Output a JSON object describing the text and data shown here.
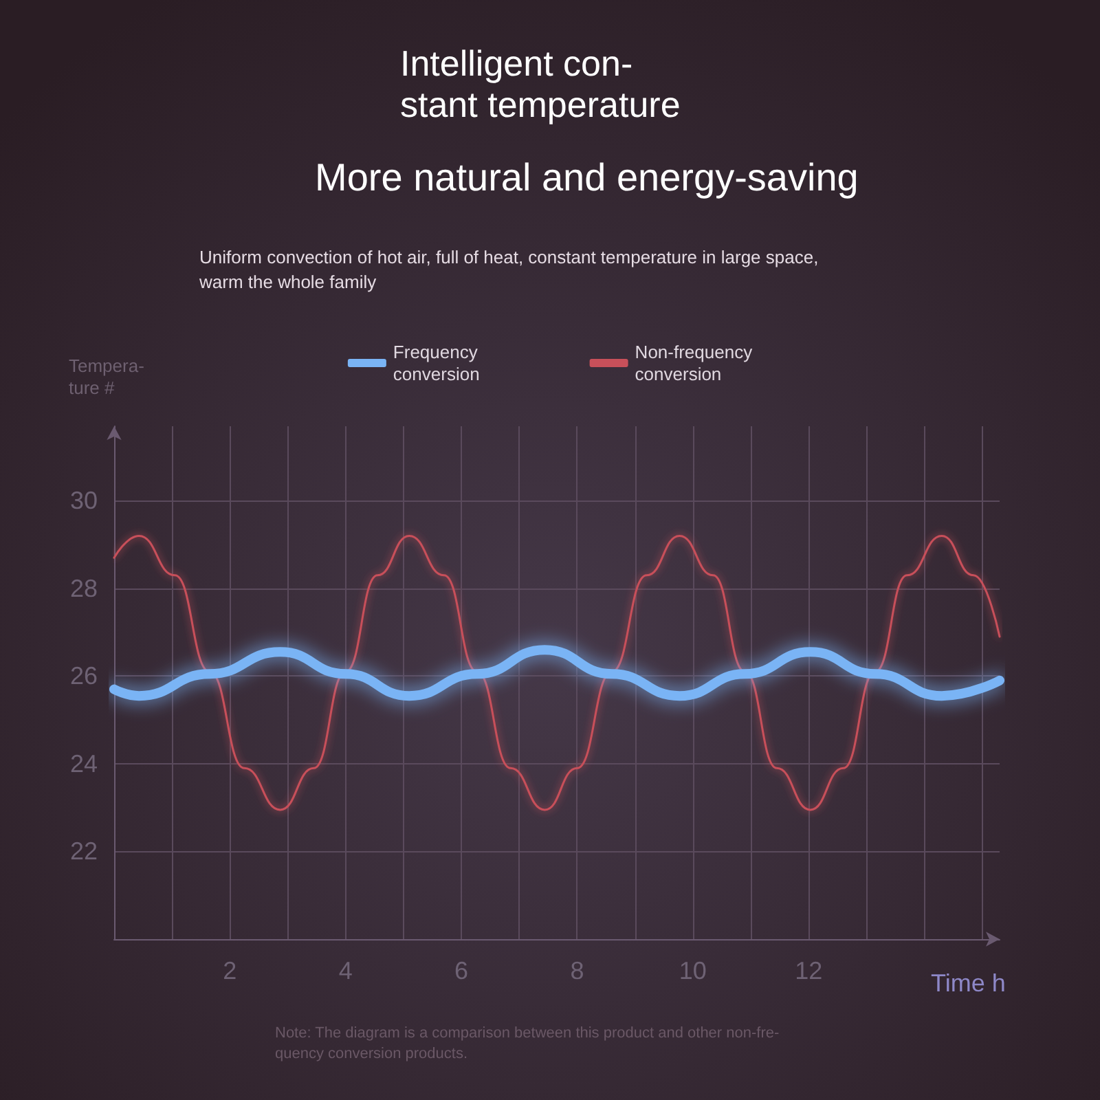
{
  "chart_data": {
    "type": "line",
    "title": "Intelligent con-\nstant temperature",
    "subtitle": "More natural and energy-saving",
    "annotations": [
      "Uniform convection of hot air, full of heat, constant temperature in large space,\nwarm the whole family",
      "Note: The diagram is a comparison between this product and other non-fre-\nquency conversion products."
    ],
    "xlabel": "Time h",
    "ylabel": "Tempera-\nture #",
    "series": [
      {
        "name": "Frequency\nconversion",
        "color": "#7ab4f5",
        "x": [
          0,
          0.43,
          1.65,
          2.87,
          4.0,
          5.1,
          6.27,
          7.44,
          8.6,
          9.77,
          10.9,
          12.03,
          13.15,
          14.3,
          15.3
        ],
        "values": [
          25.7,
          25.55,
          26.05,
          26.55,
          26.05,
          25.55,
          26.05,
          26.6,
          26.05,
          25.55,
          26.05,
          26.55,
          26.05,
          25.55,
          25.9
        ]
      },
      {
        "name": "Non-frequency\nconversion",
        "color": "#c8505a",
        "x": [
          0,
          0.43,
          1.05,
          1.65,
          2.25,
          2.87,
          3.45,
          4.0,
          4.55,
          5.1,
          5.7,
          6.27,
          6.85,
          7.44,
          8.0,
          8.6,
          9.2,
          9.77,
          10.35,
          10.9,
          11.45,
          12.03,
          12.6,
          13.15,
          13.7,
          14.3,
          14.85,
          15.3
        ],
        "values": [
          28.7,
          29.2,
          28.3,
          26.1,
          23.9,
          22.95,
          23.9,
          26.1,
          28.3,
          29.2,
          28.3,
          26.1,
          23.9,
          22.95,
          23.9,
          26.1,
          28.3,
          29.2,
          28.3,
          26.1,
          23.9,
          22.95,
          23.9,
          26.1,
          28.3,
          29.2,
          28.3,
          26.9
        ]
      }
    ],
    "xlim": [
      0,
      15.3
    ],
    "xticks": [
      {
        "value": 1,
        "label": null
      },
      2,
      {
        "value": 3,
        "label": null
      },
      4,
      {
        "value": 5,
        "label": null
      },
      6,
      {
        "value": 7,
        "label": null
      },
      8,
      {
        "value": 9,
        "label": null
      },
      10,
      {
        "value": 11,
        "label": null
      },
      12,
      {
        "value": 13,
        "label": null
      },
      {
        "value": 14,
        "label": null
      },
      {
        "value": 15,
        "label": null
      }
    ],
    "ylim": [
      20,
      31.7
    ],
    "yticks": [
      22,
      24,
      26,
      28,
      30
    ],
    "grid": true,
    "legend": "top",
    "marker": "none",
    "line_style": "solid"
  }
}
